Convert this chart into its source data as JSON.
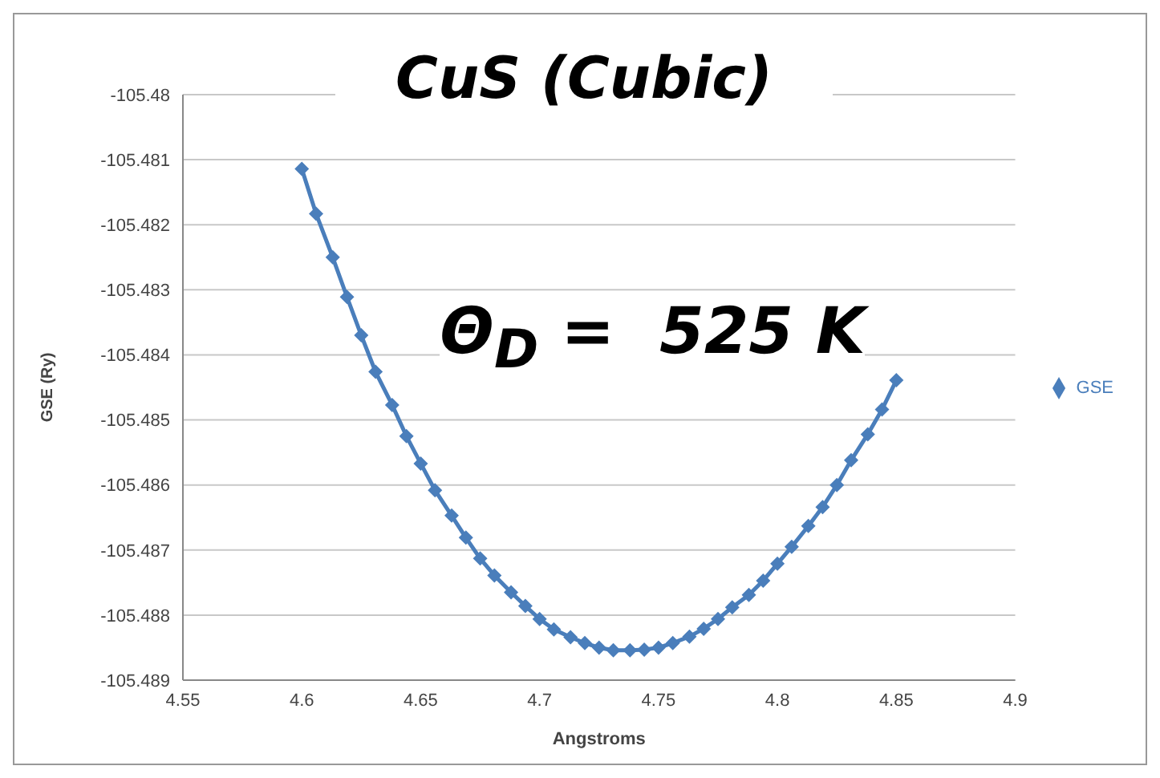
{
  "chart_data": {
    "type": "line",
    "title": "CuS (Cubic)",
    "xlabel": "Angstroms",
    "ylabel": "GSE (Ry)",
    "annotations": [
      "Θ$_{D}$ =  525 K"
    ],
    "x": [
      4.6,
      4.606,
      4.613,
      4.619,
      4.625,
      4.631,
      4.638,
      4.644,
      4.65,
      4.656,
      4.663,
      4.669,
      4.675,
      4.681,
      4.688,
      4.694,
      4.7,
      4.706,
      4.713,
      4.719,
      4.725,
      4.731,
      4.738,
      4.744,
      4.75,
      4.756,
      4.763,
      4.769,
      4.775,
      4.781,
      4.788,
      4.794,
      4.8,
      4.806,
      4.813,
      4.819,
      4.825,
      4.831,
      4.838,
      4.844,
      4.85
    ],
    "series": [
      {
        "name": "GSE",
        "color": "#4a7ebb",
        "values": [
          -105.48114,
          -105.48183,
          -105.4825,
          -105.48311,
          -105.4837,
          -105.48426,
          -105.48477,
          -105.48525,
          -105.48567,
          -105.48608,
          -105.48647,
          -105.48681,
          -105.48713,
          -105.48739,
          -105.48765,
          -105.48786,
          -105.48806,
          -105.48822,
          -105.48834,
          -105.48843,
          -105.4885,
          -105.48854,
          -105.48854,
          -105.48853,
          -105.4885,
          -105.48843,
          -105.48833,
          -105.48821,
          -105.48806,
          -105.48788,
          -105.48769,
          -105.48747,
          -105.48721,
          -105.48695,
          -105.48663,
          -105.48634,
          -105.486,
          -105.48562,
          -105.48522,
          -105.48484,
          -105.48439
        ]
      }
    ],
    "xlim": [
      4.55,
      4.9
    ],
    "xticks": [
      4.55,
      4.6,
      4.65,
      4.7,
      4.75,
      4.8,
      4.85,
      4.9
    ],
    "ylim": [
      -105.489,
      -105.48
    ],
    "yticks": [
      -105.489,
      -105.488,
      -105.487,
      -105.486,
      -105.485,
      -105.484,
      -105.483,
      -105.482,
      -105.481,
      -105.48
    ],
    "grid": "y",
    "legend": "right",
    "marker": "diamond",
    "line_style": "solid"
  }
}
